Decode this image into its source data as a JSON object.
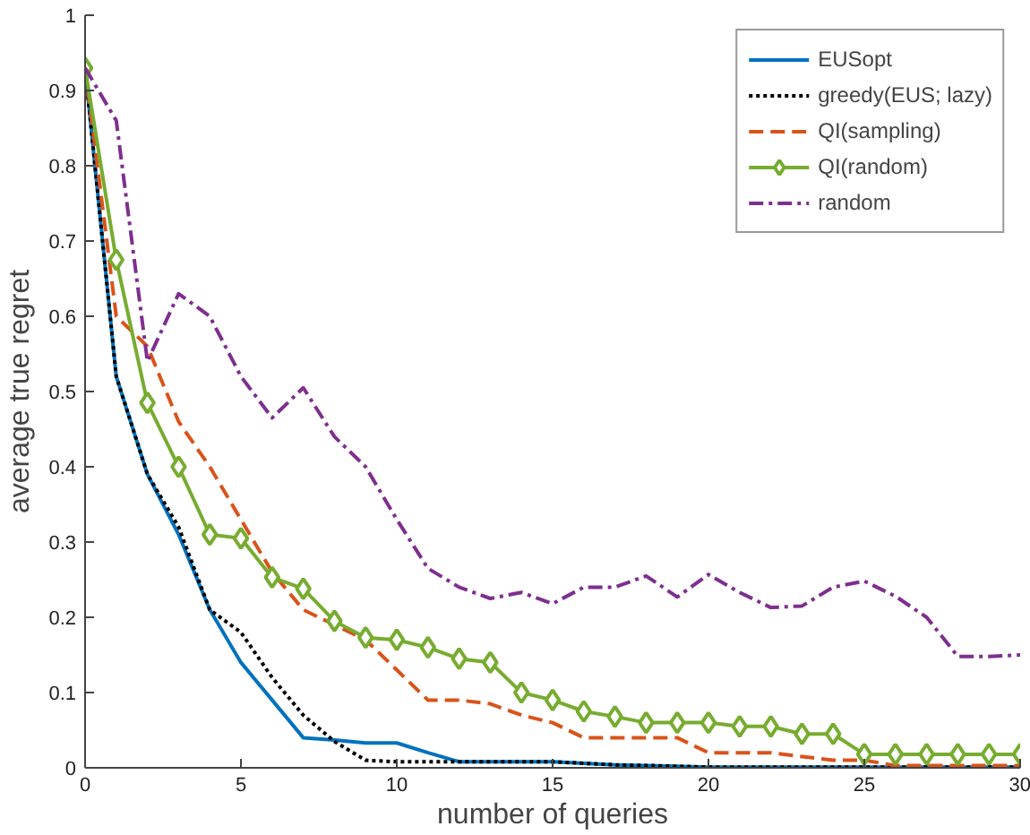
{
  "chart_data": {
    "type": "line",
    "xlabel": "number of queries",
    "ylabel": "average true regret",
    "x": [
      0,
      1,
      2,
      3,
      4,
      5,
      6,
      7,
      8,
      9,
      10,
      11,
      12,
      13,
      14,
      15,
      16,
      17,
      18,
      19,
      20,
      21,
      22,
      23,
      24,
      25,
      26,
      27,
      28,
      29,
      30
    ],
    "xlim": [
      0,
      30
    ],
    "xticks": [
      0,
      5,
      10,
      15,
      20,
      25,
      30
    ],
    "ylim": [
      0,
      1
    ],
    "yticks": [
      0,
      0.1,
      0.2,
      0.3,
      0.4,
      0.5,
      0.6,
      0.7,
      0.8,
      0.9,
      1
    ],
    "grid": false,
    "legend": "top right",
    "series": [
      {
        "name": "EUSopt",
        "color": "#0072bd",
        "line_style": "solid",
        "marker": "none",
        "values": [
          0.93,
          0.52,
          0.39,
          0.31,
          0.21,
          0.14,
          0.09,
          0.04,
          0.037,
          0.033,
          0.033,
          0.02,
          0.008,
          0.008,
          0.008,
          0.008,
          0.006,
          0.004,
          0.003,
          0.002,
          0.001,
          0.001,
          0.001,
          0.001,
          0.001,
          0.001,
          0.001,
          0.001,
          0.001,
          0.001,
          0.001
        ]
      },
      {
        "name": "greedy(EUS; lazy)",
        "color": "#000000",
        "line_style": "dotted",
        "marker": "none",
        "values": [
          0.93,
          0.52,
          0.39,
          0.32,
          0.21,
          0.18,
          0.12,
          0.07,
          0.035,
          0.01,
          0.008,
          0.008,
          0.008,
          0.008,
          0.008,
          0.008,
          0.006,
          0.004,
          0.003,
          0.002,
          0.001,
          0.001,
          0.001,
          0.001,
          0.001,
          0.001,
          0.001,
          0.001,
          0.001,
          0.001,
          0.001
        ]
      },
      {
        "name": "QI(sampling)",
        "color": "#d95319",
        "line_style": "dashed",
        "marker": "none",
        "values": [
          0.93,
          0.6,
          0.56,
          0.46,
          0.4,
          0.33,
          0.26,
          0.21,
          0.19,
          0.17,
          0.13,
          0.09,
          0.09,
          0.085,
          0.07,
          0.06,
          0.04,
          0.04,
          0.04,
          0.04,
          0.02,
          0.02,
          0.02,
          0.015,
          0.01,
          0.01,
          0.003,
          0.003,
          0.003,
          0.003,
          0.003
        ]
      },
      {
        "name": "QI(random)",
        "color": "#77ac30",
        "line_style": "solid",
        "marker": "diamond",
        "values": [
          0.93,
          0.675,
          0.485,
          0.4,
          0.31,
          0.305,
          0.253,
          0.238,
          0.195,
          0.173,
          0.17,
          0.16,
          0.145,
          0.14,
          0.1,
          0.09,
          0.075,
          0.068,
          0.06,
          0.06,
          0.06,
          0.055,
          0.055,
          0.045,
          0.045,
          0.018,
          0.018,
          0.018,
          0.018,
          0.018,
          0.018
        ]
      },
      {
        "name": "random",
        "color": "#7e2f8e",
        "line_style": "dashdot",
        "marker": "none",
        "values": [
          0.93,
          0.86,
          0.54,
          0.63,
          0.6,
          0.52,
          0.465,
          0.505,
          0.44,
          0.4,
          0.33,
          0.265,
          0.24,
          0.225,
          0.233,
          0.218,
          0.24,
          0.24,
          0.255,
          0.227,
          0.257,
          0.233,
          0.213,
          0.215,
          0.24,
          0.248,
          0.228,
          0.2,
          0.148,
          0.148,
          0.15
        ]
      }
    ]
  }
}
